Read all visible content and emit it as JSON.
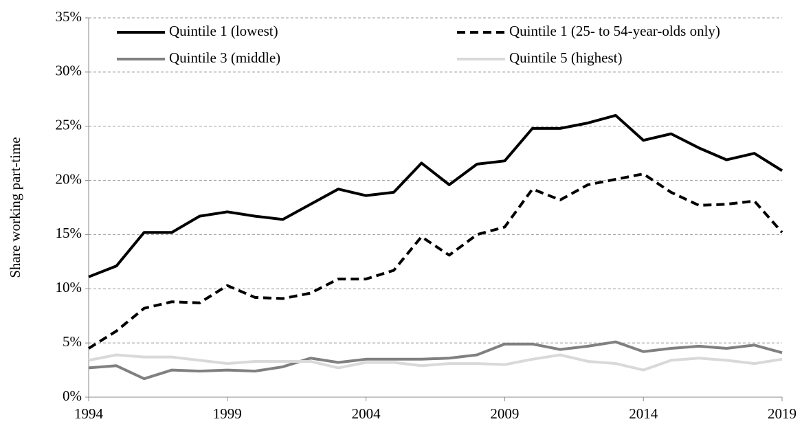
{
  "chart_data": {
    "type": "line",
    "y_label": "Share working part-time",
    "x": [
      1994,
      1995,
      1996,
      1997,
      1998,
      1999,
      2000,
      2001,
      2002,
      2003,
      2004,
      2005,
      2006,
      2007,
      2008,
      2009,
      2010,
      2011,
      2012,
      2013,
      2014,
      2015,
      2016,
      2017,
      2018,
      2019
    ],
    "xlim": [
      1994,
      2019
    ],
    "xticks": [
      1994,
      1999,
      2004,
      2009,
      2014,
      2019
    ],
    "ylim": [
      0,
      35
    ],
    "yticks": [
      {
        "value": 0,
        "label": "0%"
      },
      {
        "value": 5,
        "label": "5%"
      },
      {
        "value": 10,
        "label": "10%"
      },
      {
        "value": 15,
        "label": "15%"
      },
      {
        "value": 20,
        "label": "20%"
      },
      {
        "value": 25,
        "label": "25%"
      },
      {
        "value": 30,
        "label": "30%"
      },
      {
        "value": 35,
        "label": "35%"
      }
    ],
    "grid": true,
    "legend": "top",
    "series": [
      {
        "name": "Quintile 1 (lowest)",
        "color": "#000000",
        "dashed": false,
        "values": [
          11.1,
          12.1,
          15.2,
          15.2,
          16.7,
          17.1,
          16.7,
          16.4,
          17.8,
          19.2,
          18.6,
          18.9,
          21.6,
          19.6,
          21.5,
          21.8,
          24.8,
          24.8,
          25.3,
          26.0,
          23.7,
          24.3,
          23.0,
          21.9,
          22.5,
          20.9
        ]
      },
      {
        "name": "Quintile 1 (25- to 54-year-olds only)",
        "color": "#000000",
        "dashed": true,
        "values": [
          4.5,
          6.1,
          8.2,
          8.8,
          8.7,
          10.3,
          9.2,
          9.1,
          9.6,
          10.9,
          10.9,
          11.7,
          14.8,
          13.1,
          15.0,
          15.7,
          19.2,
          18.2,
          19.6,
          20.1,
          20.6,
          18.9,
          17.7,
          17.8,
          18.1,
          15.2
        ]
      },
      {
        "name": "Quintile 3 (middle)",
        "color": "#808080",
        "dashed": false,
        "values": [
          2.7,
          2.9,
          1.7,
          2.5,
          2.4,
          2.5,
          2.4,
          2.8,
          3.6,
          3.2,
          3.5,
          3.5,
          3.5,
          3.6,
          3.9,
          4.9,
          4.9,
          4.4,
          4.7,
          5.1,
          4.2,
          4.5,
          4.7,
          4.5,
          4.8,
          4.1
        ]
      },
      {
        "name": "Quintile 5 (highest)",
        "color": "#d9d9d9",
        "dashed": false,
        "values": [
          3.4,
          3.9,
          3.7,
          3.7,
          3.4,
          3.1,
          3.3,
          3.3,
          3.3,
          2.7,
          3.2,
          3.2,
          2.9,
          3.1,
          3.1,
          3.0,
          3.5,
          3.9,
          3.3,
          3.1,
          2.5,
          3.4,
          3.6,
          3.4,
          3.1,
          3.5
        ]
      }
    ]
  }
}
